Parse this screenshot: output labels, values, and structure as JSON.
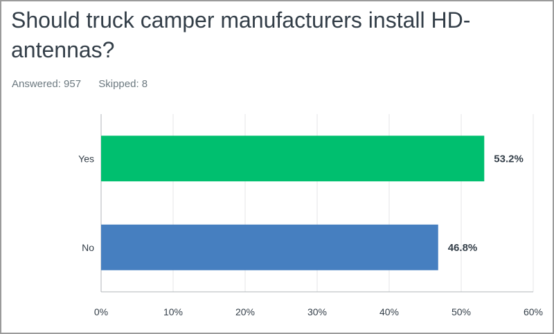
{
  "title": "Should truck camper manufacturers install HD-antennas?",
  "answered": "Answered: 957",
  "skipped": "Skipped: 8",
  "colors": {
    "yes": "#00bf6f",
    "no": "#467fc0",
    "grid": "#e4e6e7",
    "axis": "#b0b6ba"
  },
  "chart_data": {
    "type": "bar",
    "orientation": "horizontal",
    "categories": [
      "Yes",
      "No"
    ],
    "values": [
      53.2,
      46.8
    ],
    "data_labels": [
      "53.2%",
      "46.8%"
    ],
    "xlim": [
      0,
      60
    ],
    "xticks": [
      0,
      10,
      20,
      30,
      40,
      50,
      60
    ],
    "xtick_labels": [
      "0%",
      "10%",
      "20%",
      "30%",
      "40%",
      "50%",
      "60%"
    ],
    "grid": true,
    "title": "Should truck camper manufacturers install HD-antennas?"
  }
}
